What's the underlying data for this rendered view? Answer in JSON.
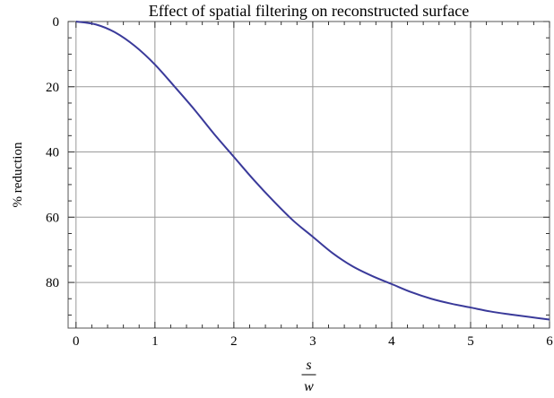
{
  "chart_data": {
    "type": "line",
    "title": "Effect of spatial filtering on reconstructed surface",
    "xlabel": {
      "numerator": "s",
      "denominator": "w"
    },
    "ylabel": "% reduction",
    "xlim": [
      -0.1,
      6.0
    ],
    "ylim": [
      0,
      94
    ],
    "y_inverted": true,
    "xticks": [
      0,
      1,
      2,
      3,
      4,
      5,
      6
    ],
    "yticks": [
      0,
      20,
      40,
      60,
      80
    ],
    "grid": true,
    "series": [
      {
        "color": "#3a3a9a",
        "x": [
          0,
          0.25,
          0.5,
          0.75,
          1.0,
          1.25,
          1.5,
          1.75,
          2.0,
          2.25,
          2.5,
          2.75,
          3.0,
          3.25,
          3.5,
          3.75,
          4.0,
          4.25,
          4.5,
          4.75,
          5.0,
          5.25,
          5.5,
          5.75,
          6.0
        ],
        "y": [
          0,
          0.9,
          3.4,
          7.6,
          13.2,
          20.0,
          27.0,
          34.5,
          41.5,
          48.5,
          55.0,
          61.0,
          66.0,
          71.0,
          75.0,
          78.0,
          80.5,
          83.0,
          85.0,
          86.5,
          87.7,
          88.9,
          89.8,
          90.6,
          91.4
        ]
      }
    ]
  }
}
